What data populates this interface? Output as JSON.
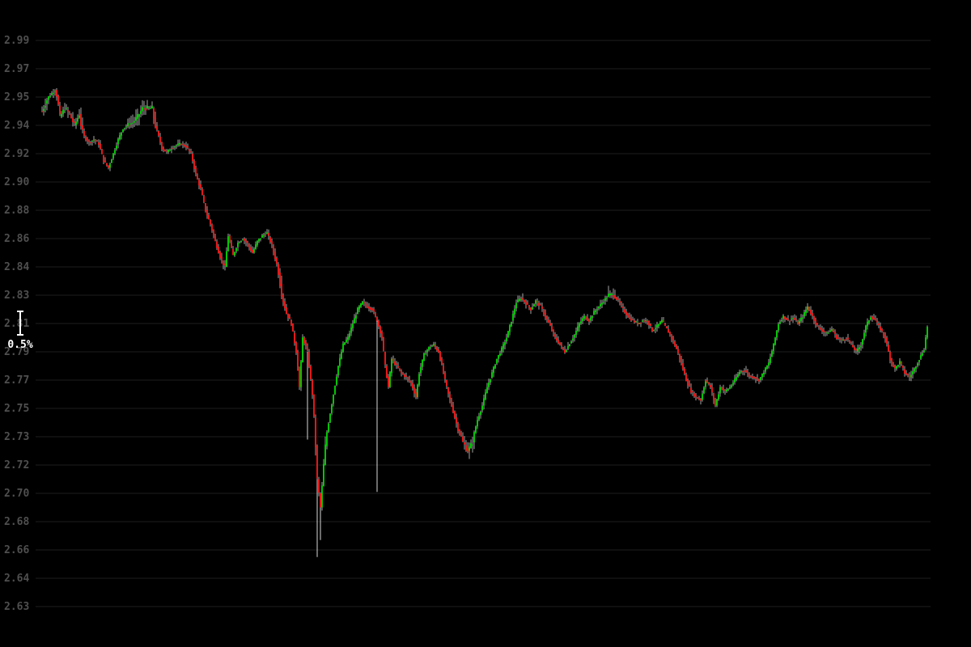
{
  "chart_data": {
    "type": "candlestick",
    "title": "",
    "xlabel": "",
    "ylabel": "",
    "y_ticks": [
      "2.99",
      "2.97",
      "2.95",
      "2.94",
      "2.92",
      "2.90",
      "2.88",
      "2.86",
      "2.84",
      "2.83",
      "2.81",
      "2.79",
      "2.77",
      "2.75",
      "2.73",
      "2.72",
      "2.70",
      "2.68",
      "2.66",
      "2.64",
      "2.63"
    ],
    "ylim": [
      2.63,
      2.99
    ],
    "grid": true,
    "up_color": "#00dd00",
    "down_color": "#ff1a1a",
    "scale_marker": {
      "label": "0.5%"
    },
    "path_points": [
      [
        0,
        2.945
      ],
      [
        3,
        2.949
      ],
      [
        8,
        2.955
      ],
      [
        11,
        2.943
      ],
      [
        14,
        2.946
      ],
      [
        17,
        2.944
      ],
      [
        20,
        2.94
      ],
      [
        23,
        2.944
      ],
      [
        26,
        2.932
      ],
      [
        29,
        2.928
      ],
      [
        32,
        2.93
      ],
      [
        35,
        2.927
      ],
      [
        38,
        2.915
      ],
      [
        41,
        2.91
      ],
      [
        44,
        2.92
      ],
      [
        47,
        2.93
      ],
      [
        50,
        2.938
      ],
      [
        53,
        2.94
      ],
      [
        56,
        2.941
      ],
      [
        59,
        2.943
      ],
      [
        62,
        2.946
      ],
      [
        65,
        2.946
      ],
      [
        68,
        2.946
      ],
      [
        71,
        2.936
      ],
      [
        74,
        2.924
      ],
      [
        77,
        2.921
      ],
      [
        80,
        2.924
      ],
      [
        83,
        2.926
      ],
      [
        86,
        2.927
      ],
      [
        89,
        2.925
      ],
      [
        92,
        2.92
      ],
      [
        95,
        2.905
      ],
      [
        98,
        2.895
      ],
      [
        101,
        2.88
      ],
      [
        104,
        2.87
      ],
      [
        107,
        2.858
      ],
      [
        110,
        2.847
      ],
      [
        113,
        2.84
      ],
      [
        115,
        2.862
      ],
      [
        118,
        2.848
      ],
      [
        121,
        2.857
      ],
      [
        124,
        2.86
      ],
      [
        127,
        2.856
      ],
      [
        130,
        2.85
      ],
      [
        133,
        2.858
      ],
      [
        136,
        2.862
      ],
      [
        139,
        2.864
      ],
      [
        142,
        2.855
      ],
      [
        145,
        2.842
      ],
      [
        148,
        2.83
      ],
      [
        151,
        2.817
      ],
      [
        154,
        2.81
      ],
      [
        157,
        2.79
      ],
      [
        159,
        2.765
      ],
      [
        161,
        2.8
      ],
      [
        164,
        2.79
      ],
      [
        167,
        2.76
      ],
      [
        170,
        2.71
      ],
      [
        172,
        2.69
      ],
      [
        174,
        2.72
      ],
      [
        177,
        2.74
      ],
      [
        180,
        2.76
      ],
      [
        183,
        2.78
      ],
      [
        186,
        2.795
      ],
      [
        189,
        2.8
      ],
      [
        192,
        2.81
      ],
      [
        195,
        2.82
      ],
      [
        198,
        2.825
      ],
      [
        201,
        2.822
      ],
      [
        204,
        2.82
      ],
      [
        207,
        2.812
      ],
      [
        210,
        2.8
      ],
      [
        212,
        2.78
      ],
      [
        214,
        2.765
      ],
      [
        216,
        2.785
      ],
      [
        219,
        2.78
      ],
      [
        222,
        2.775
      ],
      [
        225,
        2.772
      ],
      [
        228,
        2.768
      ],
      [
        231,
        2.758
      ],
      [
        233,
        2.775
      ],
      [
        236,
        2.788
      ],
      [
        239,
        2.793
      ],
      [
        242,
        2.795
      ],
      [
        245,
        2.79
      ],
      [
        248,
        2.775
      ],
      [
        251,
        2.76
      ],
      [
        254,
        2.748
      ],
      [
        257,
        2.735
      ],
      [
        260,
        2.728
      ],
      [
        263,
        2.725
      ],
      [
        266,
        2.728
      ],
      [
        269,
        2.742
      ],
      [
        272,
        2.752
      ],
      [
        275,
        2.765
      ],
      [
        278,
        2.775
      ],
      [
        281,
        2.785
      ],
      [
        284,
        2.792
      ],
      [
        287,
        2.8
      ],
      [
        290,
        2.812
      ],
      [
        293,
        2.825
      ],
      [
        296,
        2.828
      ],
      [
        299,
        2.824
      ],
      [
        302,
        2.82
      ],
      [
        305,
        2.826
      ],
      [
        308,
        2.822
      ],
      [
        311,
        2.815
      ],
      [
        314,
        2.808
      ],
      [
        317,
        2.8
      ],
      [
        320,
        2.795
      ],
      [
        323,
        2.79
      ],
      [
        326,
        2.796
      ],
      [
        329,
        2.802
      ],
      [
        332,
        2.81
      ],
      [
        335,
        2.815
      ],
      [
        338,
        2.812
      ],
      [
        341,
        2.818
      ],
      [
        344,
        2.822
      ],
      [
        347,
        2.826
      ],
      [
        350,
        2.83
      ],
      [
        353,
        2.83
      ],
      [
        356,
        2.826
      ],
      [
        359,
        2.82
      ],
      [
        362,
        2.815
      ],
      [
        365,
        2.812
      ],
      [
        368,
        2.81
      ],
      [
        371,
        2.812
      ],
      [
        374,
        2.812
      ],
      [
        377,
        2.805
      ],
      [
        380,
        2.808
      ],
      [
        383,
        2.812
      ],
      [
        386,
        2.806
      ],
      [
        389,
        2.8
      ],
      [
        392,
        2.792
      ],
      [
        395,
        2.782
      ],
      [
        398,
        2.77
      ],
      [
        401,
        2.762
      ],
      [
        404,
        2.758
      ],
      [
        407,
        2.756
      ],
      [
        410,
        2.77
      ],
      [
        413,
        2.765
      ],
      [
        416,
        2.752
      ],
      [
        419,
        2.765
      ],
      [
        422,
        2.762
      ],
      [
        425,
        2.765
      ],
      [
        428,
        2.77
      ],
      [
        431,
        2.776
      ],
      [
        434,
        2.777
      ],
      [
        437,
        2.773
      ],
      [
        440,
        2.772
      ],
      [
        443,
        2.77
      ],
      [
        446,
        2.776
      ],
      [
        449,
        2.782
      ],
      [
        452,
        2.795
      ],
      [
        455,
        2.81
      ],
      [
        458,
        2.815
      ],
      [
        461,
        2.812
      ],
      [
        464,
        2.814
      ],
      [
        467,
        2.81
      ],
      [
        470,
        2.815
      ],
      [
        473,
        2.822
      ],
      [
        476,
        2.815
      ],
      [
        479,
        2.808
      ],
      [
        482,
        2.805
      ],
      [
        485,
        2.803
      ],
      [
        488,
        2.806
      ],
      [
        491,
        2.8
      ],
      [
        494,
        2.798
      ],
      [
        497,
        2.8
      ],
      [
        500,
        2.795
      ],
      [
        503,
        2.79
      ],
      [
        506,
        2.795
      ],
      [
        509,
        2.808
      ],
      [
        512,
        2.815
      ],
      [
        515,
        2.812
      ],
      [
        518,
        2.806
      ],
      [
        521,
        2.8
      ],
      [
        524,
        2.785
      ],
      [
        527,
        2.778
      ],
      [
        530,
        2.783
      ],
      [
        533,
        2.775
      ],
      [
        536,
        2.772
      ],
      [
        539,
        2.778
      ],
      [
        542,
        2.785
      ],
      [
        545,
        2.792
      ],
      [
        547,
        2.808
      ]
    ]
  }
}
